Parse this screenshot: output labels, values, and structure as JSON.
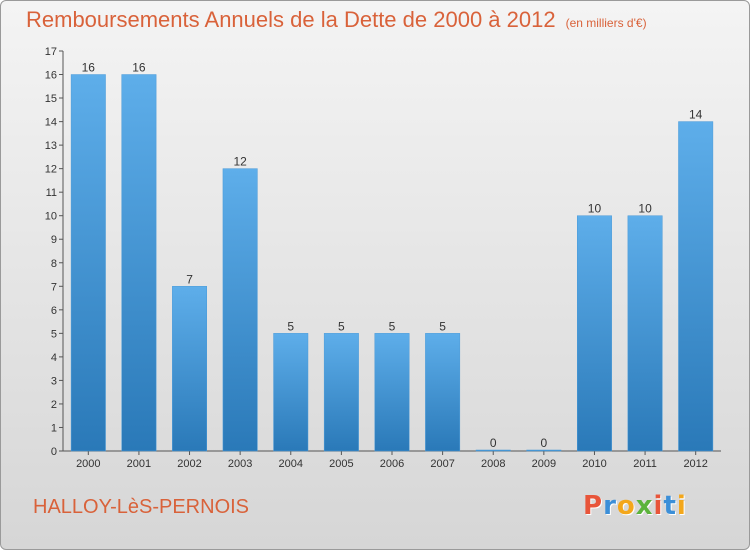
{
  "header": {
    "title": "Remboursements Annuels de la Dette de 2000 à 2012",
    "subtitle": "(en milliers d'€)"
  },
  "footer": {
    "location": "HALLOY-LèS-PERNOIS",
    "brand": "Proxiti",
    "brand_colors": [
      "#e8553a",
      "#3c8fd8",
      "#f3a71b",
      "#5bb33b",
      "#e8553a",
      "#3c8fd8",
      "#f3a71b"
    ]
  },
  "colors": {
    "bar_light": "#5eaeea",
    "bar_dark": "#2a79b8",
    "accent": "#d9623a"
  },
  "chart_data": {
    "type": "bar",
    "title": "Remboursements Annuels de la Dette de 2000 à 2012",
    "subtitle": "(en milliers d'€)",
    "categories": [
      "2000",
      "2001",
      "2002",
      "2003",
      "2004",
      "2005",
      "2006",
      "2007",
      "2008",
      "2009",
      "2010",
      "2011",
      "2012"
    ],
    "values": [
      16,
      16,
      7,
      12,
      5,
      5,
      5,
      5,
      0,
      0,
      10,
      10,
      14
    ],
    "ylim": [
      0,
      17
    ],
    "yticks": [
      0,
      1,
      2,
      3,
      4,
      5,
      6,
      7,
      8,
      9,
      10,
      11,
      12,
      13,
      14,
      15,
      16,
      17
    ],
    "grid": false,
    "data_labels": true
  }
}
